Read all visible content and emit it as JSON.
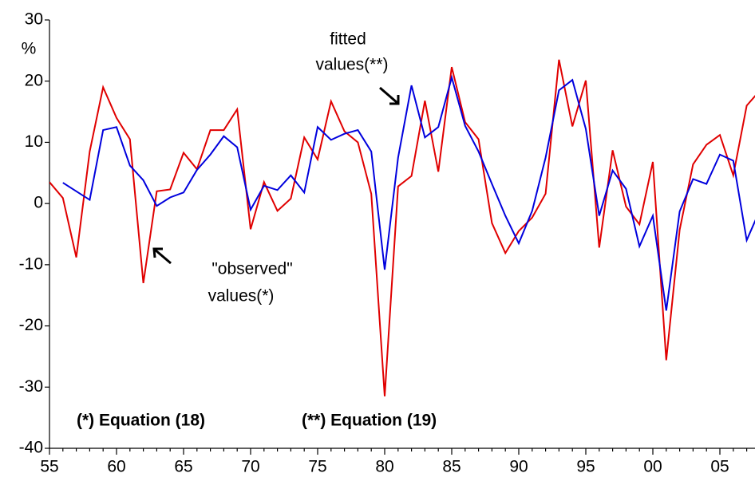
{
  "chart_data": {
    "type": "line",
    "y_label": "%",
    "categories": [
      "55",
      null,
      null,
      null,
      null,
      "60",
      null,
      null,
      null,
      null,
      "65",
      null,
      null,
      null,
      null,
      "70",
      null,
      null,
      null,
      null,
      "75",
      null,
      null,
      null,
      null,
      "80",
      null,
      null,
      null,
      null,
      "85",
      null,
      null,
      null,
      null,
      "90",
      null,
      null,
      null,
      null,
      "95",
      null,
      null,
      null,
      null,
      "00",
      null,
      null,
      null,
      null,
      "05",
      null,
      null,
      null
    ],
    "series": [
      {
        "color": "#e00000",
        "values": [
          3.5,
          0.9,
          -8.8,
          8.5,
          19,
          14,
          10.5,
          -13,
          2,
          2.3,
          8.3,
          5.6,
          12,
          12,
          15.4,
          -4.2,
          3.5,
          -1.2,
          0.8,
          10.8,
          7.2,
          16.7,
          11.8,
          10,
          1.6,
          -31.5,
          2.8,
          4.5,
          16.8,
          5.2,
          22.3,
          13.3,
          10.5,
          -3.2,
          -8.1,
          -4.5,
          -2.3,
          1.6,
          23.5,
          12.6,
          20.1,
          -7.2,
          8.7,
          -0.5,
          -3.4,
          6.8,
          -25.6,
          -4.3,
          6.4,
          9.6,
          11.2,
          4.6,
          16,
          18.5
        ]
      },
      {
        "color": "#0000dd",
        "values": [
          null,
          3.4,
          2,
          0.6,
          12,
          12.5,
          6.2,
          3.8,
          -0.4,
          1,
          1.8,
          5.5,
          8,
          11,
          9.2,
          -1,
          2.9,
          2.2,
          4.6,
          1.8,
          12.5,
          10.4,
          11.4,
          12,
          8.5,
          -10.8,
          7.5,
          19.3,
          10.8,
          12.5,
          20.6,
          12.7,
          8.5,
          3.2,
          -2,
          -6.5,
          -1.2,
          7.5,
          18.5,
          20.2,
          12.2,
          -2,
          5.4,
          2.4,
          -7,
          -2,
          -17.5,
          -1.3,
          4,
          3.2,
          8,
          7,
          -6,
          -1
        ]
      }
    ],
    "ylim": [
      -40,
      30
    ],
    "yticks": [
      -40,
      -30,
      -20,
      -10,
      0,
      10,
      20,
      30
    ],
    "annotations": {
      "fitted": [
        "fitted",
        "values(**)"
      ],
      "observed": [
        "\"observed\"",
        "values(*)"
      ],
      "eq18": "(*)  Equation (18)",
      "eq19": "(**) Equation (19)"
    }
  }
}
